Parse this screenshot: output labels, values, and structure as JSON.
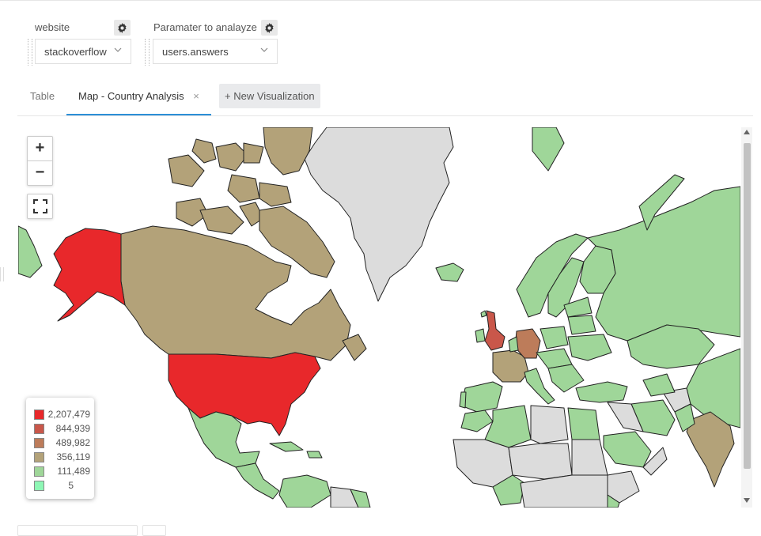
{
  "parameters": [
    {
      "label": "website",
      "value": "stackoverflow"
    },
    {
      "label": "Paramater to analayze",
      "value": "users.answers"
    }
  ],
  "tabs": [
    {
      "label": "Table",
      "active": false
    },
    {
      "label": "Map - Country Analysis",
      "active": true,
      "close": "×"
    }
  ],
  "new_visualization_label": "+ New Visualization",
  "map": {
    "zoom_in": "+",
    "zoom_out": "−",
    "legend": [
      {
        "value": "2,207,479",
        "color": "#e8282b"
      },
      {
        "value": "844,939",
        "color": "#c9574a"
      },
      {
        "value": "489,982",
        "color": "#bd7c5a"
      },
      {
        "value": "356,119",
        "color": "#b3a279"
      },
      {
        "value": "111,489",
        "color": "#9fd699"
      },
      {
        "value": "5",
        "color": "#8ef7b5"
      }
    ],
    "colors": {
      "no_data": "#dcdcdc",
      "outline": "#222222"
    }
  }
}
